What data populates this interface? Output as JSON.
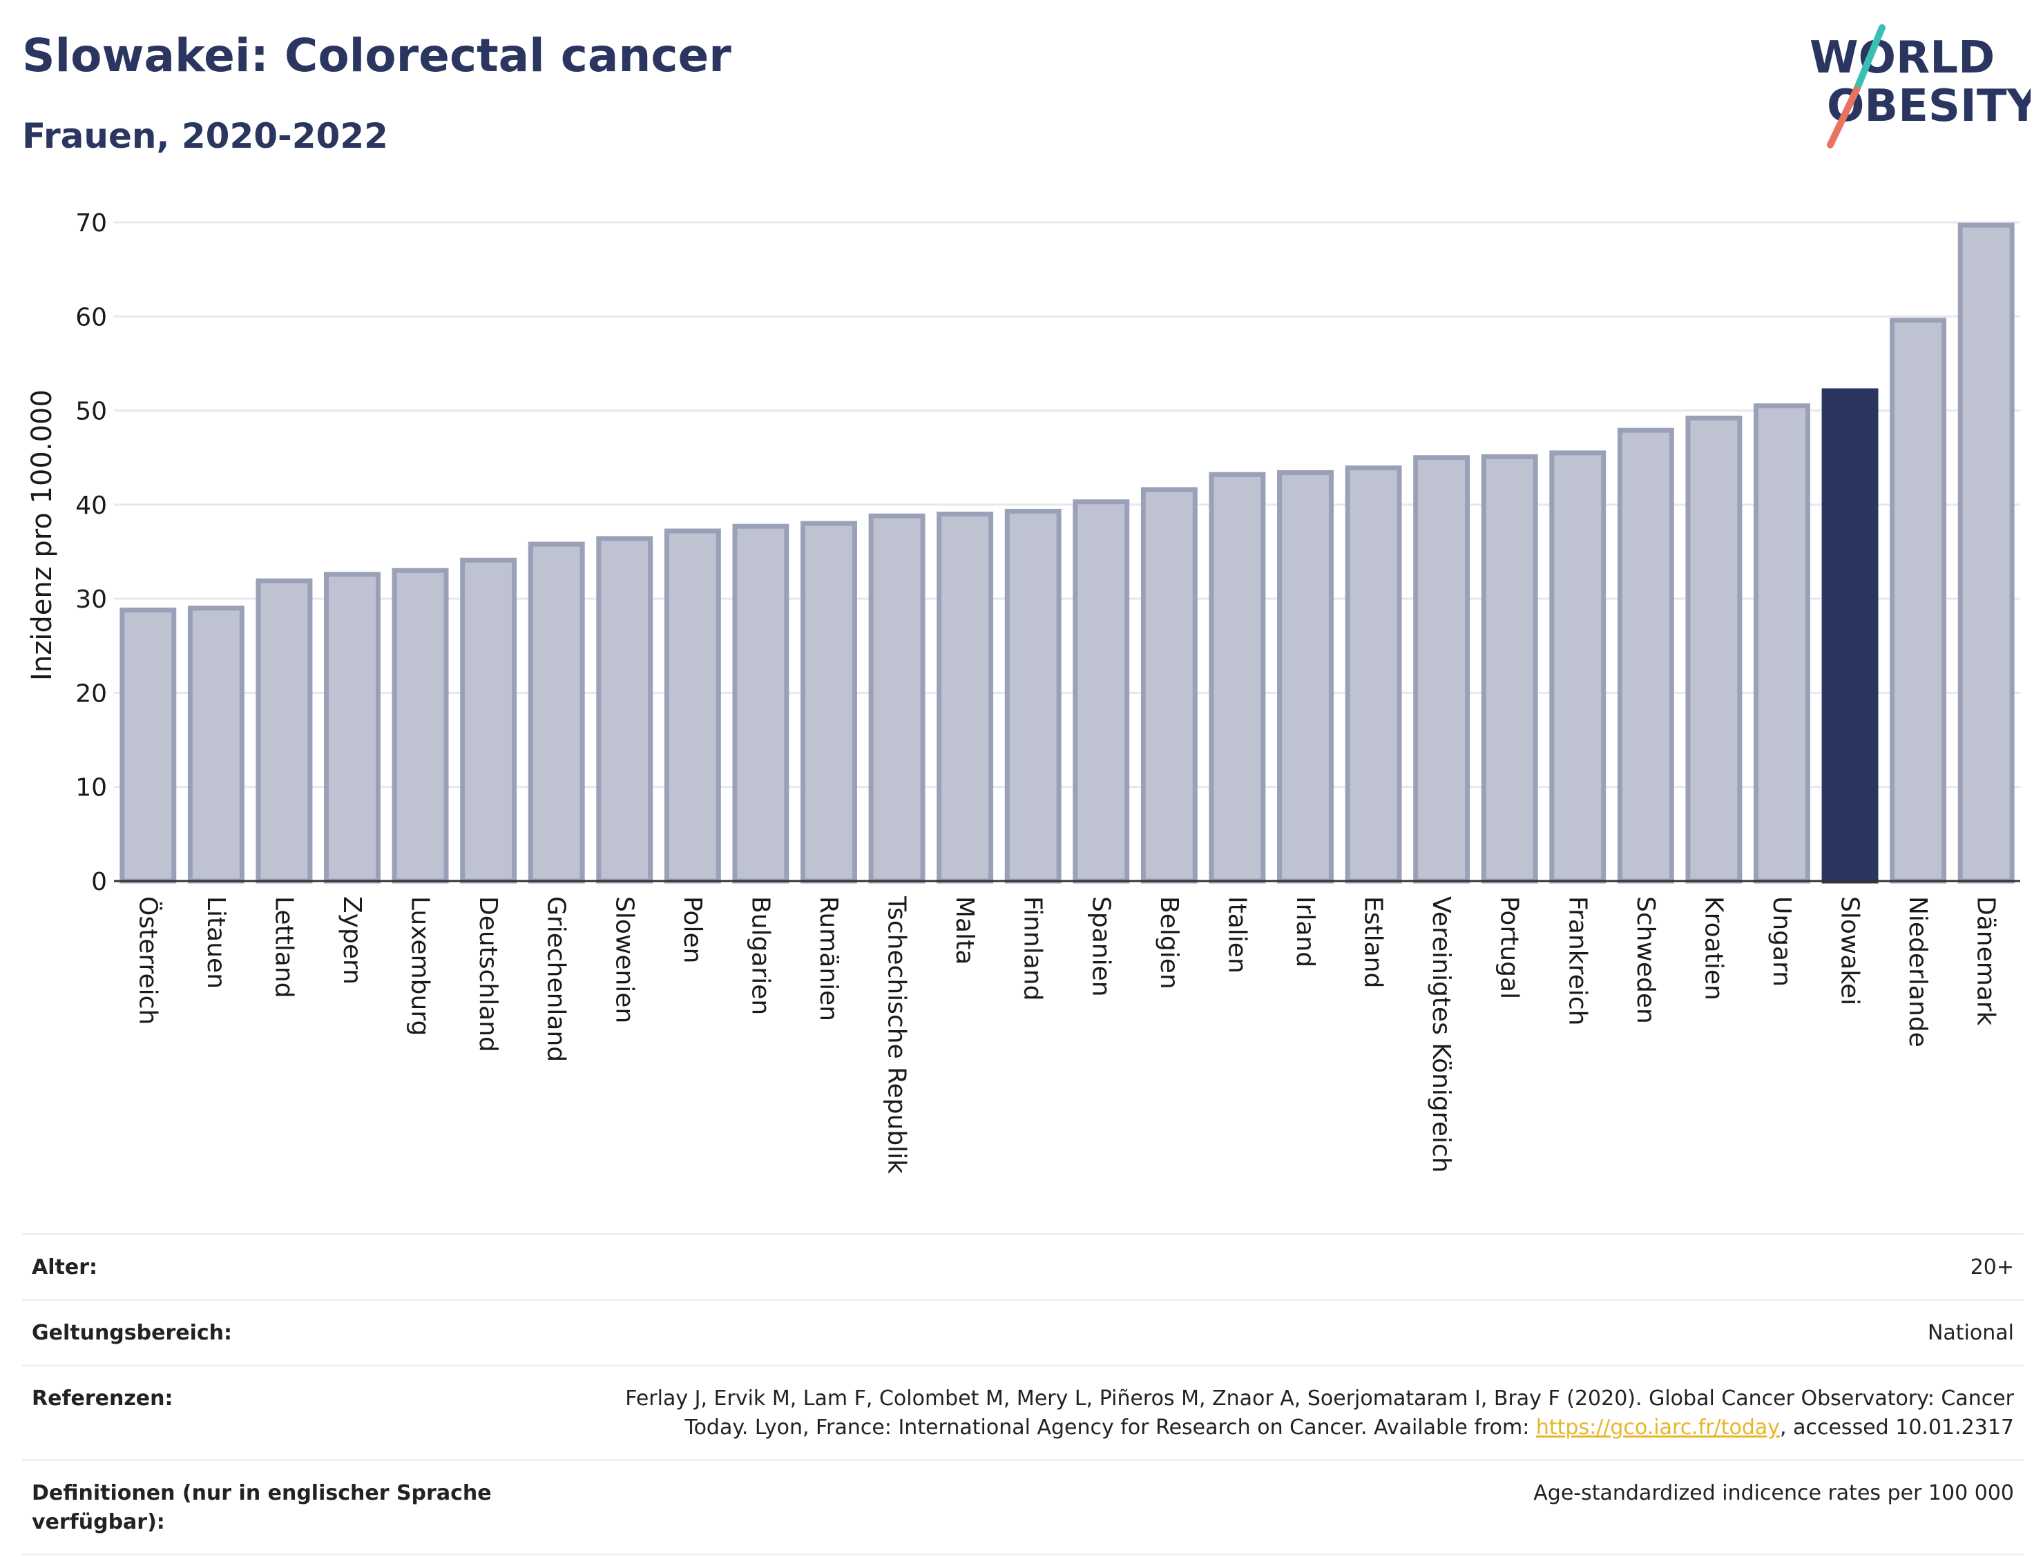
{
  "header": {
    "title": "Slowakei: Colorectal cancer",
    "subtitle": "Frauen, 2020-2022"
  },
  "logo": {
    "line1": "WORLD",
    "line2": "OBESITY",
    "color_text": "#2a3560",
    "color_slash_teal": "#3bbfb4",
    "color_slash_red": "#e8735f"
  },
  "colors": {
    "bar_default": "#bfc3d1",
    "bar_default_stroke": "#9aa0b8",
    "bar_highlight": "#2a3560",
    "grid": "#e6e8ee",
    "axis_text": "#1a1a1a"
  },
  "chart_data": {
    "type": "bar",
    "ylabel": "Inzidenz pro 100.000",
    "ylim": [
      0,
      70
    ],
    "yticks": [
      0,
      10,
      20,
      30,
      40,
      50,
      60,
      70
    ],
    "grid": true,
    "highlight": "Slowakei",
    "categories": [
      "Österreich",
      "Litauen",
      "Lettland",
      "Zypern",
      "Luxemburg",
      "Deutschland",
      "Griechenland",
      "Slowenien",
      "Polen",
      "Bulgarien",
      "Rumänien",
      "Tschechische Republik",
      "Malta",
      "Finnland",
      "Spanien",
      "Belgien",
      "Italien",
      "Irland",
      "Estland",
      "Vereinigtes Königreich",
      "Portugal",
      "Frankreich",
      "Schweden",
      "Kroatien",
      "Ungarn",
      "Slowakei",
      "Niederlande",
      "Dänemark"
    ],
    "values": [
      28.8,
      29.0,
      31.9,
      32.6,
      33.0,
      34.1,
      35.8,
      36.4,
      37.2,
      37.7,
      38.0,
      38.8,
      39.0,
      39.3,
      40.3,
      41.6,
      43.2,
      43.4,
      43.9,
      45.0,
      45.1,
      45.5,
      47.9,
      49.2,
      50.5,
      52.1,
      59.6,
      69.7
    ]
  },
  "meta": {
    "age_label": "Alter:",
    "age_value": "20+",
    "scope_label": "Geltungsbereich:",
    "scope_value": "National",
    "ref_label": "Referenzen:",
    "ref_text_before": "Ferlay J, Ervik M, Lam F, Colombet M, Mery L, Piñeros M, Znaor A, Soerjomataram I, Bray F (2020). Global Cancer Observatory: Cancer Today. Lyon, France: International Agency for Research on Cancer. Available from: ",
    "ref_link": "https://gco.iarc.fr/today",
    "ref_text_after": ", accessed 10.01.2317",
    "def_label": "Definitionen (nur in englischer Sprache verfügbar):",
    "def_value": "Age-standardized indicence rates per 100 000"
  }
}
